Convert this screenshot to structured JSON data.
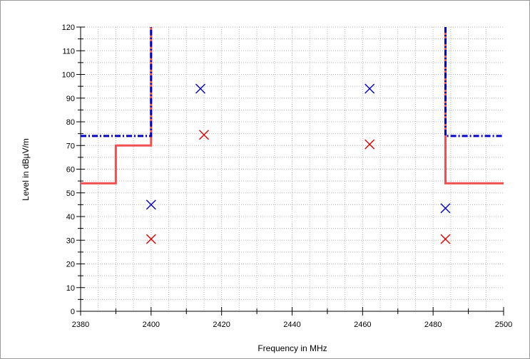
{
  "chart_data": {
    "type": "line",
    "xlabel": "Frequency in MHz",
    "ylabel": "Level in dBµV/m",
    "xlim": [
      2380,
      2500
    ],
    "ylim": [
      0,
      120
    ],
    "x_ticks": [
      2380,
      2400,
      2420,
      2440,
      2460,
      2480,
      2500
    ],
    "x_tick_labels": [
      "2380",
      "2400",
      "2420",
      "2440",
      "2460",
      "2480",
      "2500"
    ],
    "y_ticks": [
      0,
      10,
      20,
      30,
      40,
      50,
      60,
      70,
      80,
      90,
      100,
      110,
      120
    ],
    "y_tick_labels": [
      "0",
      "10",
      "20",
      "30",
      "40",
      "50",
      "60",
      "70",
      "80",
      "90",
      "100",
      "110",
      "120"
    ],
    "grid": true,
    "series": [
      {
        "style": "solid",
        "color": "#f05050",
        "points": [
          [
            2380,
            54
          ],
          [
            2390,
            54
          ],
          [
            2390,
            70
          ],
          [
            2400,
            70
          ],
          [
            2400,
            120
          ]
        ]
      },
      {
        "style": "solid",
        "color": "#f05050",
        "points": [
          [
            2483.5,
            120
          ],
          [
            2483.5,
            54
          ],
          [
            2500,
            54
          ]
        ]
      },
      {
        "style": "dashdot",
        "color": "#0000cc",
        "points": [
          [
            2380,
            74
          ],
          [
            2400,
            74
          ],
          [
            2400,
            120
          ]
        ]
      },
      {
        "style": "dashdot",
        "color": "#0000cc",
        "points": [
          [
            2483.5,
            120
          ],
          [
            2483.5,
            74
          ],
          [
            2500,
            74
          ]
        ]
      }
    ],
    "markers": [
      {
        "x": 2400,
        "y": 45,
        "color": "#0000cc"
      },
      {
        "x": 2400,
        "y": 30.5,
        "color": "#dd0000"
      },
      {
        "x": 2414,
        "y": 94,
        "color": "#0000cc"
      },
      {
        "x": 2415,
        "y": 74.5,
        "color": "#dd0000"
      },
      {
        "x": 2462,
        "y": 94,
        "color": "#0000cc"
      },
      {
        "x": 2462,
        "y": 70.5,
        "color": "#dd0000"
      },
      {
        "x": 2483.5,
        "y": 43.5,
        "color": "#0000cc"
      },
      {
        "x": 2483.5,
        "y": 30.5,
        "color": "#dd0000"
      }
    ]
  }
}
